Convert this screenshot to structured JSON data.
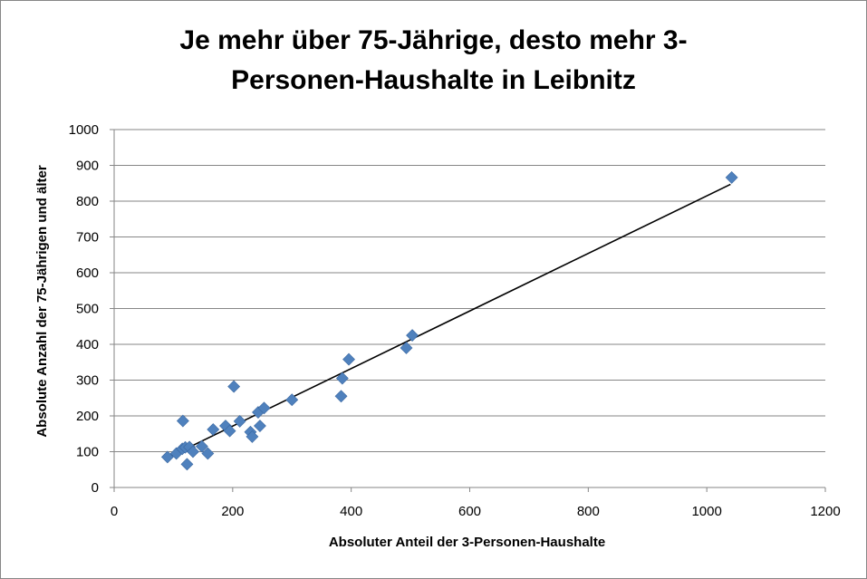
{
  "chart_data": {
    "type": "scatter",
    "title_lines": [
      "Je mehr über 75-Jährige, desto mehr 3-",
      "Personen-Haushalte in Leibnitz"
    ],
    "xlabel": "Absoluter Anteil der 3-Personen-Haushalte",
    "ylabel": "Absolute Anzahl der 75-Jährigen und älter",
    "xlim": [
      0,
      1200
    ],
    "ylim": [
      0,
      1000
    ],
    "x_ticks": [
      0,
      200,
      400,
      600,
      800,
      1000,
      1200
    ],
    "y_ticks": [
      0,
      100,
      200,
      300,
      400,
      500,
      600,
      700,
      800,
      900,
      1000
    ],
    "grid": "horizontal",
    "legend": "none",
    "marker": "diamond",
    "marker_color": "#4F81BD",
    "trendline": {
      "type": "linear",
      "color": "#000000",
      "x_range": [
        90,
        1040
      ],
      "y_start": 83,
      "y_end": 847
    },
    "points": [
      {
        "x": 90,
        "y": 85
      },
      {
        "x": 105,
        "y": 95
      },
      {
        "x": 115,
        "y": 108
      },
      {
        "x": 116,
        "y": 186
      },
      {
        "x": 120,
        "y": 112
      },
      {
        "x": 123,
        "y": 65
      },
      {
        "x": 127,
        "y": 113
      },
      {
        "x": 133,
        "y": 100
      },
      {
        "x": 148,
        "y": 115
      },
      {
        "x": 158,
        "y": 95
      },
      {
        "x": 167,
        "y": 162
      },
      {
        "x": 188,
        "y": 172
      },
      {
        "x": 195,
        "y": 158
      },
      {
        "x": 202,
        "y": 282
      },
      {
        "x": 212,
        "y": 185
      },
      {
        "x": 230,
        "y": 155
      },
      {
        "x": 233,
        "y": 142
      },
      {
        "x": 243,
        "y": 210
      },
      {
        "x": 246,
        "y": 172
      },
      {
        "x": 253,
        "y": 222
      },
      {
        "x": 300,
        "y": 245
      },
      {
        "x": 383,
        "y": 255
      },
      {
        "x": 385,
        "y": 305
      },
      {
        "x": 396,
        "y": 358
      },
      {
        "x": 493,
        "y": 390
      },
      {
        "x": 503,
        "y": 425
      },
      {
        "x": 1042,
        "y": 866
      }
    ]
  }
}
